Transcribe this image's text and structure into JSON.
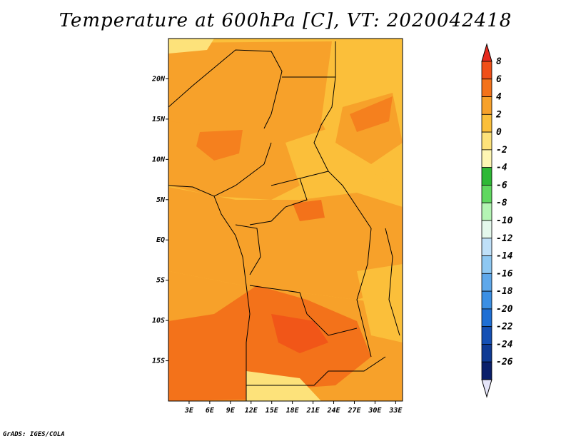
{
  "title": "Temperature at 600hPa [C], VT: 2020042418",
  "credit": "GrADS: IGES/COLA",
  "map": {
    "lon_range": [
      0,
      34
    ],
    "lat_range": [
      -20,
      25
    ],
    "lat_ticks": [
      "20N",
      "15N",
      "10N",
      "5N",
      "EQ",
      "5S",
      "10S",
      "15S"
    ],
    "lon_ticks": [
      "3E",
      "6E",
      "9E",
      "12E",
      "15E",
      "18E",
      "21E",
      "24E",
      "27E",
      "30E",
      "33E"
    ]
  },
  "colorbar": {
    "levels": [
      "8",
      "6",
      "4",
      "2",
      "0",
      "-2",
      "-4",
      "-6",
      "-8",
      "-10",
      "-12",
      "-14",
      "-16",
      "-18",
      "-20",
      "-22",
      "-24",
      "-26"
    ],
    "colors": [
      "#e62a1e",
      "#f04f18",
      "#f3721a",
      "#f7a12a",
      "#fbbf3a",
      "#fde27a",
      "#fef6b4",
      "#2eb836",
      "#60d860",
      "#b4f4b4",
      "#e4f8ec",
      "#bfe0f8",
      "#8ec8f2",
      "#5fa8ea",
      "#3b8fe4",
      "#1f6fd4",
      "#1550b4",
      "#0f3a94",
      "#0a1f6a",
      "#e4e4f8"
    ]
  }
}
